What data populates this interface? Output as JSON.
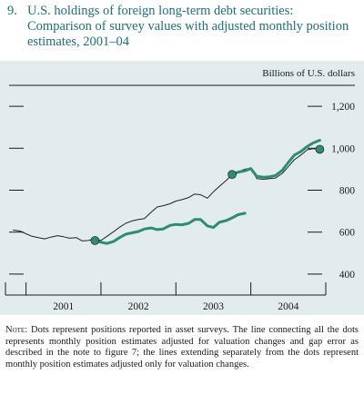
{
  "figure": {
    "number": "9.",
    "title": "U.S. holdings of foreign long-term debt securities: Comparison of survey values with adjusted monthly position estimates, 2001–04"
  },
  "note": {
    "lead": "Note:",
    "text": " Dots represent positions reported in asset surveys. The line connecting all the dots represents monthly position estimates adjusted for valuation changes and gap error as described in the note to figure 7; the lines extending separately from the dots represent monthly position estimates adjusted only for valuation changes."
  },
  "colors": {
    "panel_bg": "#e2ecec",
    "adjusted_line": "#222222",
    "valuation_line": "#2e8b74",
    "dot": "#2e8b74",
    "title": "#1f6f7a"
  },
  "chart_data": {
    "type": "line",
    "unit_label": "Billions of U.S. dollars",
    "ylim": [
      300,
      1300
    ],
    "y_ticks": [
      400,
      600,
      800,
      1000,
      1200
    ],
    "y_tick_labels": [
      "400",
      "600",
      "800",
      "1,000",
      "1,200"
    ],
    "x_range": [
      2000.75,
      2005.0
    ],
    "year_boundaries": [
      2001.0,
      2002.0,
      2003.0,
      2004.0
    ],
    "x_labels": [
      "2001",
      "2002",
      "2003",
      "2004"
    ],
    "series": [
      {
        "role": "adjusted",
        "x": [
          2000.83,
          2000.92,
          2001.0,
          2001.08,
          2001.17,
          2001.25,
          2001.33,
          2001.42,
          2001.5,
          2001.58,
          2001.67,
          2001.75,
          2001.83,
          2001.92,
          2002.0,
          2002.08,
          2002.17,
          2002.25,
          2002.33,
          2002.42,
          2002.5,
          2002.58,
          2002.67,
          2002.75,
          2002.83,
          2002.92,
          2003.0,
          2003.08,
          2003.17,
          2003.25,
          2003.33,
          2003.42,
          2003.5,
          2003.58,
          2003.67,
          2003.75,
          2003.83,
          2003.92,
          2004.0,
          2004.08,
          2004.17,
          2004.25,
          2004.33,
          2004.42,
          2004.5,
          2004.58,
          2004.67,
          2004.75,
          2004.83,
          2004.92
        ],
        "values": [
          610,
          605,
          592,
          580,
          573,
          568,
          576,
          583,
          578,
          571,
          574,
          558,
          560,
          568,
          560,
          580,
          602,
          624,
          642,
          654,
          660,
          665,
          695,
          720,
          726,
          735,
          748,
          755,
          765,
          782,
          778,
          762,
          792,
          818,
          846,
          875,
          888,
          900,
          905,
          855,
          852,
          855,
          858,
          880,
          912,
          945,
          968,
          992,
          998,
          995
        ]
      },
      {
        "role": "valuation-only",
        "segment": 1,
        "x": [
          2001.92,
          2002.0,
          2002.08,
          2002.17,
          2002.25,
          2002.33,
          2002.42,
          2002.5,
          2002.58,
          2002.67,
          2002.75,
          2002.83,
          2002.92,
          2003.0,
          2003.08,
          2003.17,
          2003.25,
          2003.33,
          2003.42,
          2003.5,
          2003.58,
          2003.67,
          2003.75,
          2003.83,
          2003.92
        ],
        "values": [
          560,
          552,
          546,
          556,
          574,
          590,
          597,
          603,
          615,
          620,
          612,
          615,
          632,
          637,
          635,
          642,
          660,
          660,
          630,
          622,
          647,
          655,
          668,
          683,
          690
        ]
      },
      {
        "role": "valuation-only",
        "segment": 2,
        "x": [
          2003.75,
          2003.83,
          2003.92,
          2004.0,
          2004.08,
          2004.17,
          2004.25,
          2004.33,
          2004.42,
          2004.5,
          2004.58,
          2004.67,
          2004.75,
          2004.83,
          2004.92
        ],
        "values": [
          875,
          886,
          892,
          903,
          866,
          862,
          864,
          870,
          895,
          932,
          967,
          985,
          1008,
          1025,
          1038
        ]
      }
    ],
    "survey_points": [
      {
        "x": 2001.92,
        "value": 560
      },
      {
        "x": 2003.75,
        "value": 875
      },
      {
        "x": 2004.92,
        "value": 995
      }
    ]
  }
}
